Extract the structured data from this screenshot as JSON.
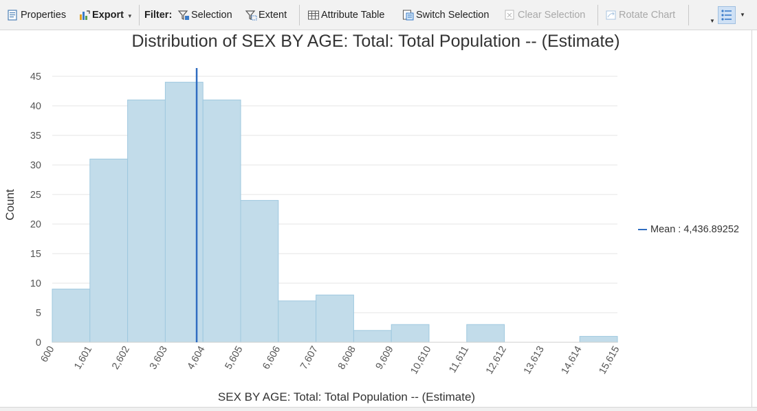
{
  "toolbar": {
    "properties": "Properties",
    "export": "Export",
    "filter": "Filter:",
    "selection": "Selection",
    "extent": "Extent",
    "attribute_table": "Attribute Table",
    "switch_selection": "Switch Selection",
    "clear_selection": "Clear Selection",
    "rotate_chart": "Rotate Chart"
  },
  "colors": {
    "bar_fill": "#c2dcea",
    "bar_stroke": "#9ec8df",
    "mean_line": "#2f6cc0",
    "grid": "#e6e6e6"
  },
  "legend": {
    "mean_label": "Mean : 4,436.89252"
  },
  "chart_data": {
    "type": "bar",
    "title": "Distribution of SEX BY AGE: Total: Total Population -- (Estimate)",
    "xlabel": "SEX BY AGE: Total: Total Population -- (Estimate)",
    "ylabel": "Count",
    "bin_edges": [
      600,
      1601,
      2602,
      3603,
      4604,
      5605,
      6606,
      7607,
      8608,
      9609,
      10610,
      11611,
      12612,
      13613,
      14614,
      15615
    ],
    "x_tick_labels": [
      "600",
      "1,601",
      "2,602",
      "3,603",
      "4,604",
      "5,605",
      "6,606",
      "7,607",
      "8,608",
      "9,609",
      "10,610",
      "11,611",
      "12,612",
      "13,613",
      "14,614",
      "15,615"
    ],
    "values": [
      9,
      31,
      41,
      44,
      41,
      24,
      7,
      8,
      2,
      3,
      0,
      3,
      0,
      0,
      1
    ],
    "mean": 4436.89252,
    "ylim": [
      0,
      45
    ],
    "y_ticks": [
      0,
      5,
      10,
      15,
      20,
      25,
      30,
      35,
      40,
      45
    ],
    "grid": true,
    "legend_position": "right"
  }
}
